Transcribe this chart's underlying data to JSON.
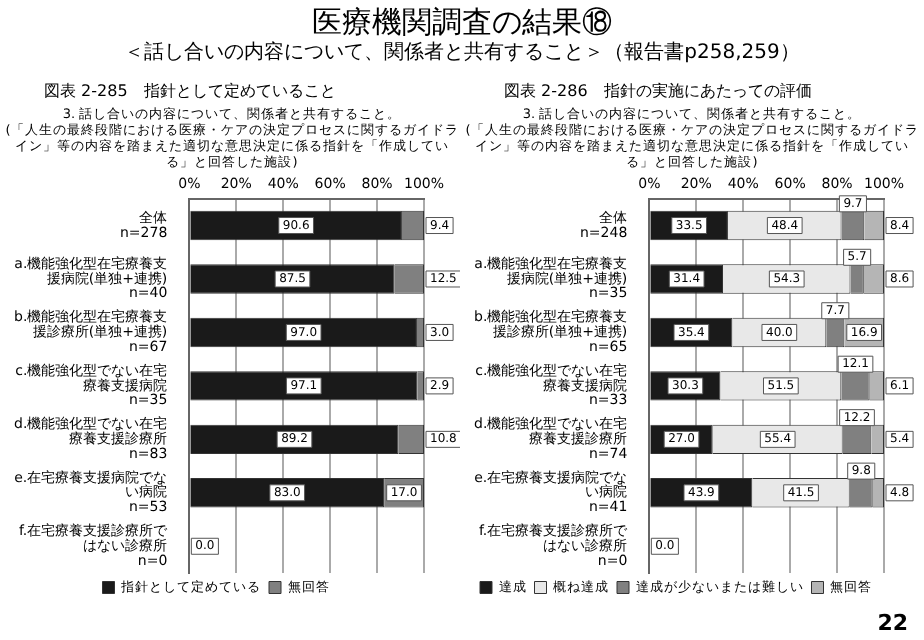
{
  "chart_data": [
    {
      "type": "bar",
      "orientation": "horizontal",
      "stacked": true,
      "title": "図表 2-285　指針として定めていること",
      "subtitle": "3. 話し合いの内容について、関係者と共有すること。\n(「人生の最終段階における医療・ケアの決定プロセスに関するガイドライン」等の内容を踏まえた適切な意思決定に係る指針を「作成している」と回答した施設)",
      "annotations": [
        "医療機関調査の結果⑱",
        "＜話し合いの内容について、関係者と共有すること＞（報告書p258,259）"
      ],
      "categories": [
        "全体 n=278",
        "a.機能強化型在宅療養支援病院(単独+連携) n=40",
        "b.機能強化型在宅療養支援診療所(単独+連携) n=67",
        "c.機能強化型でない在宅療養支援病院 n=35",
        "d.機能強化型でない在宅療養支援診療所 n=83",
        "e.在宅療養支援病院でない病院 n=53",
        "f.在宅療養支援診療所ではない診療所 n=0"
      ],
      "series": [
        {
          "name": "指針として定めている",
          "color": "#1a1a1a",
          "values": [
            90.6,
            87.5,
            97.0,
            97.1,
            89.2,
            83.0,
            0
          ],
          "value_labels": [
            "90.6",
            "87.5",
            "97.0",
            "97.1",
            "89.2",
            "83.0",
            "0.0"
          ]
        },
        {
          "name": "無回答",
          "color": "#808080",
          "values": [
            9.4,
            12.5,
            3.0,
            2.9,
            10.8,
            17.0,
            0
          ],
          "value_labels": [
            "9.4",
            "12.5",
            "3.0",
            "2.9",
            "10.8",
            "17.0",
            null
          ]
        }
      ],
      "xlim": [
        0,
        100
      ],
      "xticks": [
        {
          "value": 0,
          "label": "0%"
        },
        {
          "value": 20,
          "label": "20%"
        },
        {
          "value": 40,
          "label": "40%"
        },
        {
          "value": 60,
          "label": "60%"
        },
        {
          "value": 80,
          "label": "80%"
        },
        {
          "value": 100,
          "label": "100%"
        }
      ],
      "grid": "x",
      "legend": "bottom"
    },
    {
      "type": "bar",
      "orientation": "horizontal",
      "stacked": true,
      "title": "図表 2-286　指針の実施にあたっての評価",
      "subtitle": "3. 話し合いの内容について、関係者と共有すること。\n(「人生の最終段階における医療・ケアの決定プロセスに関するガイドライン」等の内容を踏まえた適切な意思決定に係る指針を「作成している」と回答した施設)",
      "annotations": [
        "22"
      ],
      "categories": [
        "全体 n=248",
        "a.機能強化型在宅療養支援病院(単独+連携) n=35",
        "b.機能強化型在宅療養支援診療所(単独+連携) n=65",
        "c.機能強化型でない在宅療養支援病院 n=33",
        "d.機能強化型でない在宅療養支援診療所 n=74",
        "e.在宅療養支援病院でない病院 n=41",
        "f.在宅療養支援診療所ではない診療所 n=0"
      ],
      "series": [
        {
          "name": "達成",
          "color": "#1a1a1a",
          "values": [
            33.5,
            31.4,
            35.4,
            30.3,
            27.0,
            43.9,
            0
          ],
          "value_labels": [
            "33.5",
            "31.4",
            "35.4",
            "30.3",
            "27.0",
            "43.9",
            "0.0"
          ]
        },
        {
          "name": "概ね達成",
          "color": "#e8e8e8",
          "values": [
            48.4,
            54.3,
            40.0,
            51.5,
            55.4,
            41.5,
            0
          ],
          "value_labels": [
            "48.4",
            "54.3",
            "40.0",
            "51.5",
            "55.4",
            "41.5",
            null
          ]
        },
        {
          "name": "達成が少ないまたは難しい",
          "color": "#808080",
          "values": [
            9.7,
            5.7,
            7.7,
            12.1,
            12.2,
            9.8,
            0
          ],
          "value_labels": [
            "9.7",
            "5.7",
            "7.7",
            "12.1",
            "12.2",
            "9.8",
            null
          ]
        },
        {
          "name": "無回答",
          "color": "#b5b5b5",
          "values": [
            8.4,
            8.6,
            16.9,
            6.1,
            5.4,
            4.8,
            0
          ],
          "value_labels": [
            "8.4",
            "8.6",
            "16.9",
            "6.1",
            "5.4",
            "4.8",
            null
          ]
        }
      ],
      "xlim": [
        0,
        100
      ],
      "xticks": [
        {
          "value": 0,
          "label": "0%"
        },
        {
          "value": 20,
          "label": "20%"
        },
        {
          "value": 40,
          "label": "40%"
        },
        {
          "value": 60,
          "label": "60%"
        },
        {
          "value": 80,
          "label": "80%"
        },
        {
          "value": 100,
          "label": "100%"
        }
      ],
      "grid": "x",
      "legend": "bottom"
    }
  ]
}
